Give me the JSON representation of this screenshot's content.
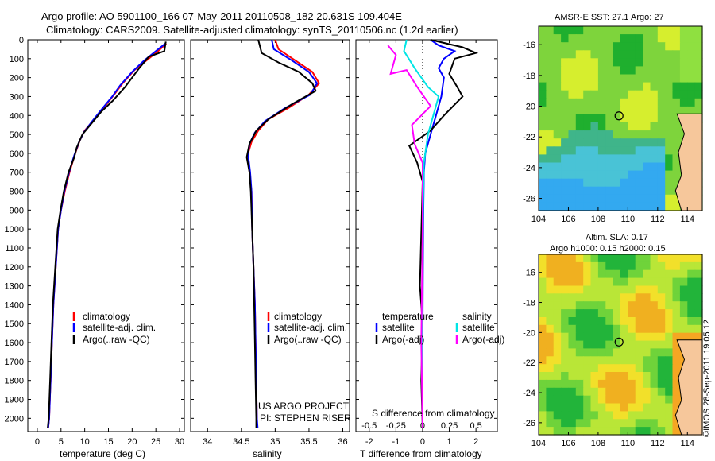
{
  "header": {
    "line1": "Argo profile: AO 5901100_166 07-May-2011 20110508_182 20.631S 109.404E",
    "line2": "Climatology: CARS2009. Satellite-adjusted climatology: synTS_20110506.nc (1.2d earlier)"
  },
  "side_text": "©IMOS 28-Sep-2011 19:05:12",
  "colors": {
    "climatology": "#ff0000",
    "satellite": "#0000ff",
    "argo": "#000000",
    "sat_salinity": "#00e5e5",
    "argo_salinity": "#ff00ff"
  },
  "chart_data": [
    {
      "type": "line",
      "panel": "temperature",
      "xlabel": "temperature (deg C)",
      "ylabel": "",
      "xlim": [
        -2,
        31
      ],
      "ylim": [
        2070,
        0
      ],
      "xticks": [
        "0",
        "5",
        "10",
        "15",
        "20",
        "25",
        "30"
      ],
      "yticks": [
        "0",
        "100",
        "200",
        "300",
        "400",
        "500",
        "600",
        "700",
        "800",
        "900",
        "1000",
        "1100",
        "1200",
        "1300",
        "1400",
        "1500",
        "1600",
        "1700",
        "1800",
        "1900",
        "2000"
      ],
      "legend_items": [
        "climatology",
        "satellite-adj. clim.",
        "Argo(..raw -QC)"
      ],
      "series": [
        {
          "name": "climatology",
          "color": "#ff0000",
          "points": [
            [
              27.2,
              20
            ],
            [
              25.5,
              60
            ],
            [
              23,
              110
            ],
            [
              20.5,
              160
            ],
            [
              18,
              230
            ],
            [
              16.2,
              290
            ],
            [
              14,
              360
            ],
            [
              12,
              420
            ],
            [
              10,
              480
            ],
            [
              9,
              530
            ],
            [
              8,
              600
            ],
            [
              6.8,
              700
            ],
            [
              5.8,
              800
            ],
            [
              5,
              900
            ],
            [
              4.4,
              1000
            ],
            [
              3.9,
              1200
            ],
            [
              3.4,
              1400
            ],
            [
              3.1,
              1600
            ],
            [
              2.8,
              1800
            ],
            [
              2.5,
              2000
            ],
            [
              2.3,
              2050
            ]
          ]
        },
        {
          "name": "satellite-adj. clim.",
          "color": "#0000ff",
          "points": [
            [
              27,
              20
            ],
            [
              25,
              60
            ],
            [
              22.5,
              110
            ],
            [
              20,
              170
            ],
            [
              17.5,
              240
            ],
            [
              15.8,
              300
            ],
            [
              13.5,
              370
            ],
            [
              11.6,
              430
            ],
            [
              9.8,
              490
            ],
            [
              8.8,
              540
            ],
            [
              7.8,
              610
            ],
            [
              6.7,
              700
            ],
            [
              5.7,
              800
            ],
            [
              5,
              900
            ],
            [
              4.4,
              1000
            ],
            [
              3.9,
              1200
            ],
            [
              3.4,
              1400
            ],
            [
              3.1,
              1600
            ],
            [
              2.8,
              1800
            ],
            [
              2.5,
              2000
            ],
            [
              2.3,
              2050
            ]
          ]
        },
        {
          "name": "Argo(..raw -QC)",
          "color": "#000000",
          "points": [
            [
              27.1,
              10
            ],
            [
              26.8,
              60
            ],
            [
              23.5,
              90
            ],
            [
              21.5,
              150
            ],
            [
              18.5,
              250
            ],
            [
              16,
              320
            ],
            [
              13.5,
              380
            ],
            [
              11.5,
              440
            ],
            [
              9.5,
              500
            ],
            [
              8.3,
              570
            ],
            [
              7.8,
              620
            ],
            [
              6.6,
              700
            ],
            [
              5.6,
              800
            ],
            [
              4.9,
              900
            ],
            [
              4.3,
              1000
            ],
            [
              3.8,
              1200
            ],
            [
              3.3,
              1400
            ],
            [
              3,
              1600
            ],
            [
              2.7,
              1800
            ],
            [
              2.4,
              2000
            ],
            [
              2.2,
              2050
            ]
          ]
        }
      ]
    },
    {
      "type": "line",
      "panel": "salinity",
      "xlabel": "salinity",
      "xlim": [
        33.75,
        36.1
      ],
      "ylim": [
        2070,
        0
      ],
      "xticks": [
        "34",
        "34.5",
        "35",
        "35.5",
        "36"
      ],
      "legend_items": [
        "climatology",
        "satellite-adj. clim.",
        "Argo(..raw -QC)"
      ],
      "annotations": [
        "US ARGO PROJECT",
        "PI: STEPHEN RISER"
      ],
      "series": [
        {
          "name": "climatology",
          "color": "#ff0000",
          "points": [
            [
              35.0,
              0
            ],
            [
              35.05,
              50
            ],
            [
              35.3,
              110
            ],
            [
              35.55,
              170
            ],
            [
              35.65,
              230
            ],
            [
              35.5,
              290
            ],
            [
              35.2,
              360
            ],
            [
              34.9,
              420
            ],
            [
              34.75,
              480
            ],
            [
              34.65,
              540
            ],
            [
              34.6,
              600
            ],
            [
              34.62,
              700
            ],
            [
              34.65,
              800
            ],
            [
              34.66,
              1000
            ],
            [
              34.68,
              1200
            ],
            [
              34.7,
              1400
            ],
            [
              34.71,
              1600
            ],
            [
              34.72,
              1800
            ],
            [
              34.73,
              2000
            ],
            [
              34.73,
              2050
            ]
          ]
        },
        {
          "name": "satellite-adj. clim.",
          "color": "#0000ff",
          "points": [
            [
              34.95,
              0
            ],
            [
              34.98,
              50
            ],
            [
              35.25,
              110
            ],
            [
              35.5,
              170
            ],
            [
              35.62,
              230
            ],
            [
              35.52,
              290
            ],
            [
              35.15,
              360
            ],
            [
              34.85,
              430
            ],
            [
              34.7,
              490
            ],
            [
              34.62,
              550
            ],
            [
              34.6,
              610
            ],
            [
              34.63,
              700
            ],
            [
              34.65,
              800
            ],
            [
              34.66,
              1000
            ],
            [
              34.68,
              1200
            ],
            [
              34.7,
              1400
            ],
            [
              34.71,
              1600
            ],
            [
              34.72,
              1800
            ],
            [
              34.73,
              2000
            ],
            [
              34.74,
              2050
            ]
          ]
        },
        {
          "name": "Argo(..raw -QC)",
          "color": "#000000",
          "points": [
            [
              34.75,
              0
            ],
            [
              34.8,
              70
            ],
            [
              35.05,
              120
            ],
            [
              35.35,
              170
            ],
            [
              35.55,
              230
            ],
            [
              35.6,
              270
            ],
            [
              35.25,
              340
            ],
            [
              34.9,
              420
            ],
            [
              34.72,
              480
            ],
            [
              34.62,
              550
            ],
            [
              34.58,
              620
            ],
            [
              34.62,
              700
            ],
            [
              34.64,
              800
            ],
            [
              34.66,
              1000
            ],
            [
              34.68,
              1200
            ],
            [
              34.69,
              1400
            ],
            [
              34.7,
              1600
            ],
            [
              34.71,
              1800
            ],
            [
              34.72,
              2000
            ],
            [
              34.72,
              2050
            ]
          ]
        }
      ]
    },
    {
      "type": "line",
      "panel": "difference",
      "xlabel": "T difference from climatology",
      "xlabel_top": "S difference from climatology",
      "xlim": [
        -2.5,
        2.8
      ],
      "ylim": [
        2070,
        0
      ],
      "xticks": [
        "-2",
        "-1",
        "0",
        "1",
        "2"
      ],
      "xticks_top": [
        "-0.5",
        "-0.25",
        "0",
        "0.25",
        "0.5"
      ],
      "legend_headers": [
        "temperature",
        "salinity"
      ],
      "legend_items": [
        "satellite",
        "Argo(-adj)",
        "satellite",
        "Argo(-adj)"
      ],
      "series": [
        {
          "name": "temperature satellite",
          "color": "#0000ff",
          "points": [
            [
              0.3,
              0
            ],
            [
              0.6,
              30
            ],
            [
              1.2,
              60
            ],
            [
              0.8,
              100
            ],
            [
              0.6,
              150
            ],
            [
              0.8,
              200
            ],
            [
              0.7,
              300
            ],
            [
              0.5,
              400
            ],
            [
              0.3,
              500
            ],
            [
              0.1,
              600
            ],
            [
              0.05,
              700
            ],
            [
              0.02,
              1000
            ],
            [
              0,
              1500
            ],
            [
              0,
              2050
            ]
          ]
        },
        {
          "name": "temperature Argo(-adj)",
          "color": "#000000",
          "points": [
            [
              0.3,
              0
            ],
            [
              1.5,
              40
            ],
            [
              2.0,
              70
            ],
            [
              1.2,
              100
            ],
            [
              1.0,
              180
            ],
            [
              1.3,
              250
            ],
            [
              1.5,
              300
            ],
            [
              0.8,
              400
            ],
            [
              0.3,
              480
            ],
            [
              -0.5,
              560
            ],
            [
              -0.2,
              650
            ],
            [
              0,
              750
            ],
            [
              -0.1,
              1300
            ],
            [
              0,
              1500
            ],
            [
              -0.05,
              1800
            ],
            [
              0,
              2050
            ]
          ]
        },
        {
          "name": "salinity satellite",
          "color": "#00e5e5",
          "points": [
            [
              -0.6,
              0
            ],
            [
              -0.7,
              60
            ],
            [
              -0.3,
              150
            ],
            [
              0.2,
              250
            ],
            [
              0.6,
              300
            ],
            [
              0.4,
              400
            ],
            [
              0.2,
              500
            ],
            [
              0.05,
              650
            ],
            [
              0,
              1000
            ],
            [
              0,
              2050
            ]
          ]
        },
        {
          "name": "salinity Argo(-adj)",
          "color": "#ff00ff",
          "points": [
            [
              -1.3,
              30
            ],
            [
              -1.0,
              80
            ],
            [
              -1.2,
              180
            ],
            [
              -0.6,
              160
            ],
            [
              -0.2,
              250
            ],
            [
              0.3,
              350
            ],
            [
              -0.4,
              450
            ],
            [
              -0.3,
              550
            ],
            [
              0,
              650
            ],
            [
              0,
              1000
            ],
            [
              -0.05,
              1600
            ],
            [
              0,
              2050
            ]
          ]
        }
      ]
    },
    {
      "type": "heatmap",
      "panel": "sst_map",
      "title": "AMSR-E SST: 27.1  Argo: 27",
      "xlim": [
        104,
        115
      ],
      "ylim": [
        -26.8,
        -14.8
      ],
      "xticks": [
        "104",
        "106",
        "108",
        "110",
        "112",
        "114"
      ],
      "yticks": [
        "-16",
        "-18",
        "-20",
        "-22",
        "-24",
        "-26"
      ],
      "marker": [
        109.404,
        -20.631
      ]
    },
    {
      "type": "heatmap",
      "panel": "sla_map",
      "title": "Altim. SLA: 0.17",
      "subtitle": "Argo h1000: 0.15 h2000: 0.15",
      "xlim": [
        104,
        115
      ],
      "ylim": [
        -26.8,
        -14.8
      ],
      "xticks": [
        "104",
        "106",
        "108",
        "110",
        "112",
        "114"
      ],
      "yticks": [
        "-16",
        "-18",
        "-20",
        "-22",
        "-24",
        "-26"
      ],
      "marker": [
        109.404,
        -20.631
      ]
    }
  ]
}
